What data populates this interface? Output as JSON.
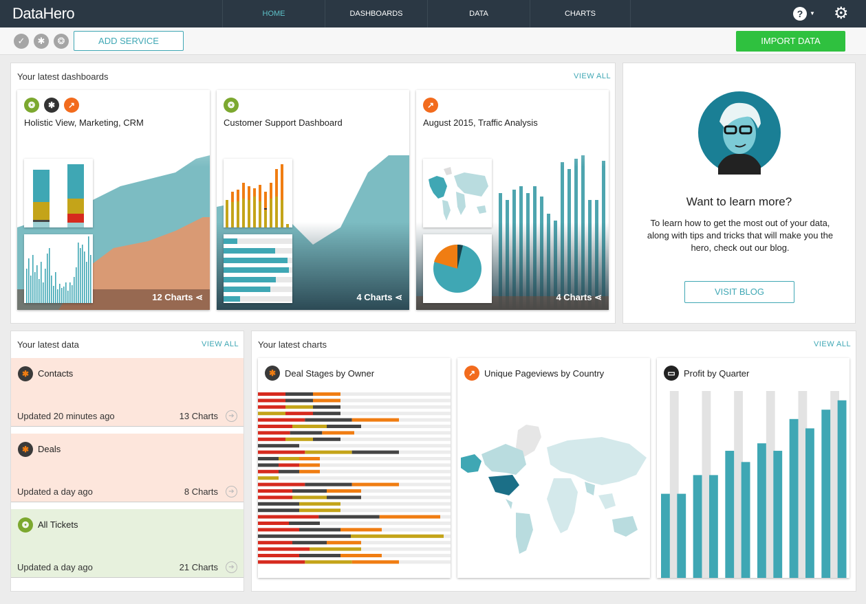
{
  "app": {
    "logo": "DataHero"
  },
  "nav": {
    "tabs": [
      {
        "label": "HOME"
      },
      {
        "label": "DASHBOARDS"
      },
      {
        "label": "DATA"
      },
      {
        "label": "CHARTS"
      }
    ],
    "help_icon": "?",
    "gear_icon": "⚙"
  },
  "toolbar": {
    "add_service": "ADD SERVICE",
    "import_data": "IMPORT DATA"
  },
  "dashboards": {
    "title": "Your latest dashboards",
    "view_all": "VIEW ALL",
    "items": [
      {
        "title": "Holistic View, Marketing, CRM",
        "count": "12 Charts"
      },
      {
        "title": "Customer Support Dashboard",
        "count": "4 Charts"
      },
      {
        "title": "August 2015, Traffic Analysis",
        "count": "4 Charts"
      }
    ]
  },
  "learn": {
    "title": "Want to learn more?",
    "text": "To learn how to get the most out of your data, along with tips and tricks that will make you the hero, check out our blog.",
    "button": "VISIT BLOG"
  },
  "data": {
    "title": "Your latest data",
    "view_all": "VIEW ALL",
    "items": [
      {
        "name": "Contacts",
        "updated": "Updated 20 minutes ago",
        "charts": "13 Charts"
      },
      {
        "name": "Deals",
        "updated": "Updated a day ago",
        "charts": "8 Charts"
      },
      {
        "name": "All Tickets",
        "updated": "Updated a day ago",
        "charts": "21 Charts"
      }
    ]
  },
  "charts": {
    "title": "Your latest charts",
    "view_all": "VIEW ALL",
    "items": [
      {
        "title": "Deal Stages by Owner"
      },
      {
        "title": "Unique Pageviews by Country"
      },
      {
        "title": "Profit by Quarter"
      }
    ]
  },
  "colors": {
    "teal": "#3fa7b4",
    "green": "#2fc13f",
    "nav": "#2b3844",
    "red": "#d62a1e",
    "yellow": "#c4a419",
    "orange": "#f07d12",
    "dark": "#444444"
  },
  "chart_data": [
    {
      "type": "bar",
      "title": "Profit by Quarter",
      "values": [
        0.45,
        0.45,
        0.55,
        0.55,
        0.68,
        0.62,
        0.72,
        0.68,
        0.85,
        0.8,
        0.9,
        0.95
      ]
    }
  ]
}
